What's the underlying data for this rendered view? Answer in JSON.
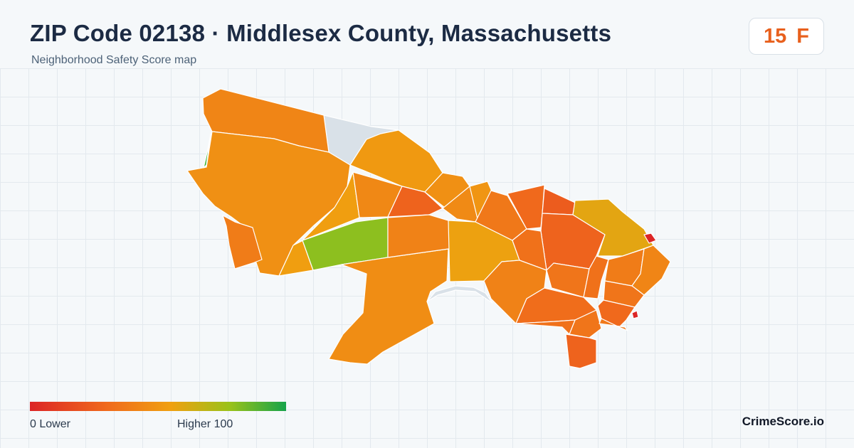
{
  "header": {
    "title": "ZIP Code 02138 · Middlesex County, Massachusetts",
    "subtitle": "Neighborhood Safety Score map"
  },
  "score": {
    "value": "15",
    "grade": "F",
    "color": "#e8601d"
  },
  "legend": {
    "low_label": "0  Lower",
    "high_label": "Higher  100",
    "colors": [
      "#dc2626",
      "#f06a1c",
      "#f0a010",
      "#9ac21a",
      "#16a34a"
    ]
  },
  "brand": {
    "name": "CrimeScore.io"
  },
  "map": {
    "no_data_color": "#d9e1e8",
    "neighborhood_scores": [
      14,
      18,
      22,
      11,
      24,
      15,
      5,
      60,
      17,
      13,
      18,
      16,
      20,
      26,
      10,
      6,
      4,
      5,
      29,
      8,
      13,
      9,
      8,
      11,
      14,
      9,
      7,
      9,
      6,
      10,
      8,
      5
    ]
  }
}
